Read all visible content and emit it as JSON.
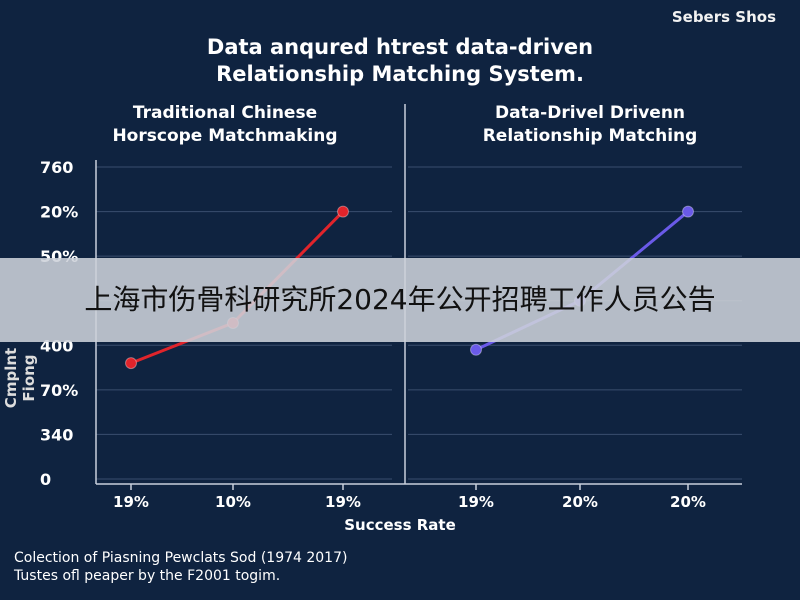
{
  "brand": "Sebers Shos",
  "title": {
    "line1": "Data anqured htrest data-driven",
    "line2": "Relationship Matching System."
  },
  "panels": {
    "left": {
      "line1": "Traditional Chinese",
      "line2": "Horscope Matchmaking"
    },
    "right": {
      "line1": "Data-Drivel Drivenn",
      "line2": "Relationship Matching"
    }
  },
  "banner": "上海市伤骨科研究所2024年公开招聘工作人员公告",
  "footer": {
    "line1": "Colection of Piasning Pewclats Sod (1974 2017)",
    "line2": "Tustes ofl peaper by the F2001 togim."
  },
  "colors": {
    "background": "#0f2340",
    "left_series": "#e0242b",
    "right_series": "#6a5ae8",
    "grid": "#3a4e6e"
  },
  "chart_data": {
    "type": "line",
    "xlabel": "Success Rate",
    "ylabel": "Cmplnt Fiong",
    "y_tick_labels": [
      "0",
      "340",
      "70%",
      "400",
      "",
      "50%",
      "20%",
      "760"
    ],
    "grid": true,
    "panels": [
      {
        "x_tick_labels": [
          "19%",
          "10%",
          "19%"
        ],
        "series": [
          {
            "color": "#e0242b",
            "x_index": [
              0,
              1,
              2
            ],
            "y_level": [
              2.6,
              3.5,
              6.0
            ]
          }
        ]
      },
      {
        "x_tick_labels": [
          "19%",
          "20%",
          "20%"
        ],
        "series": [
          {
            "color": "#6a5ae8",
            "x_index": [
              0,
              1,
              2
            ],
            "y_level": [
              2.9,
              4.0,
              6.0
            ]
          }
        ]
      }
    ]
  }
}
